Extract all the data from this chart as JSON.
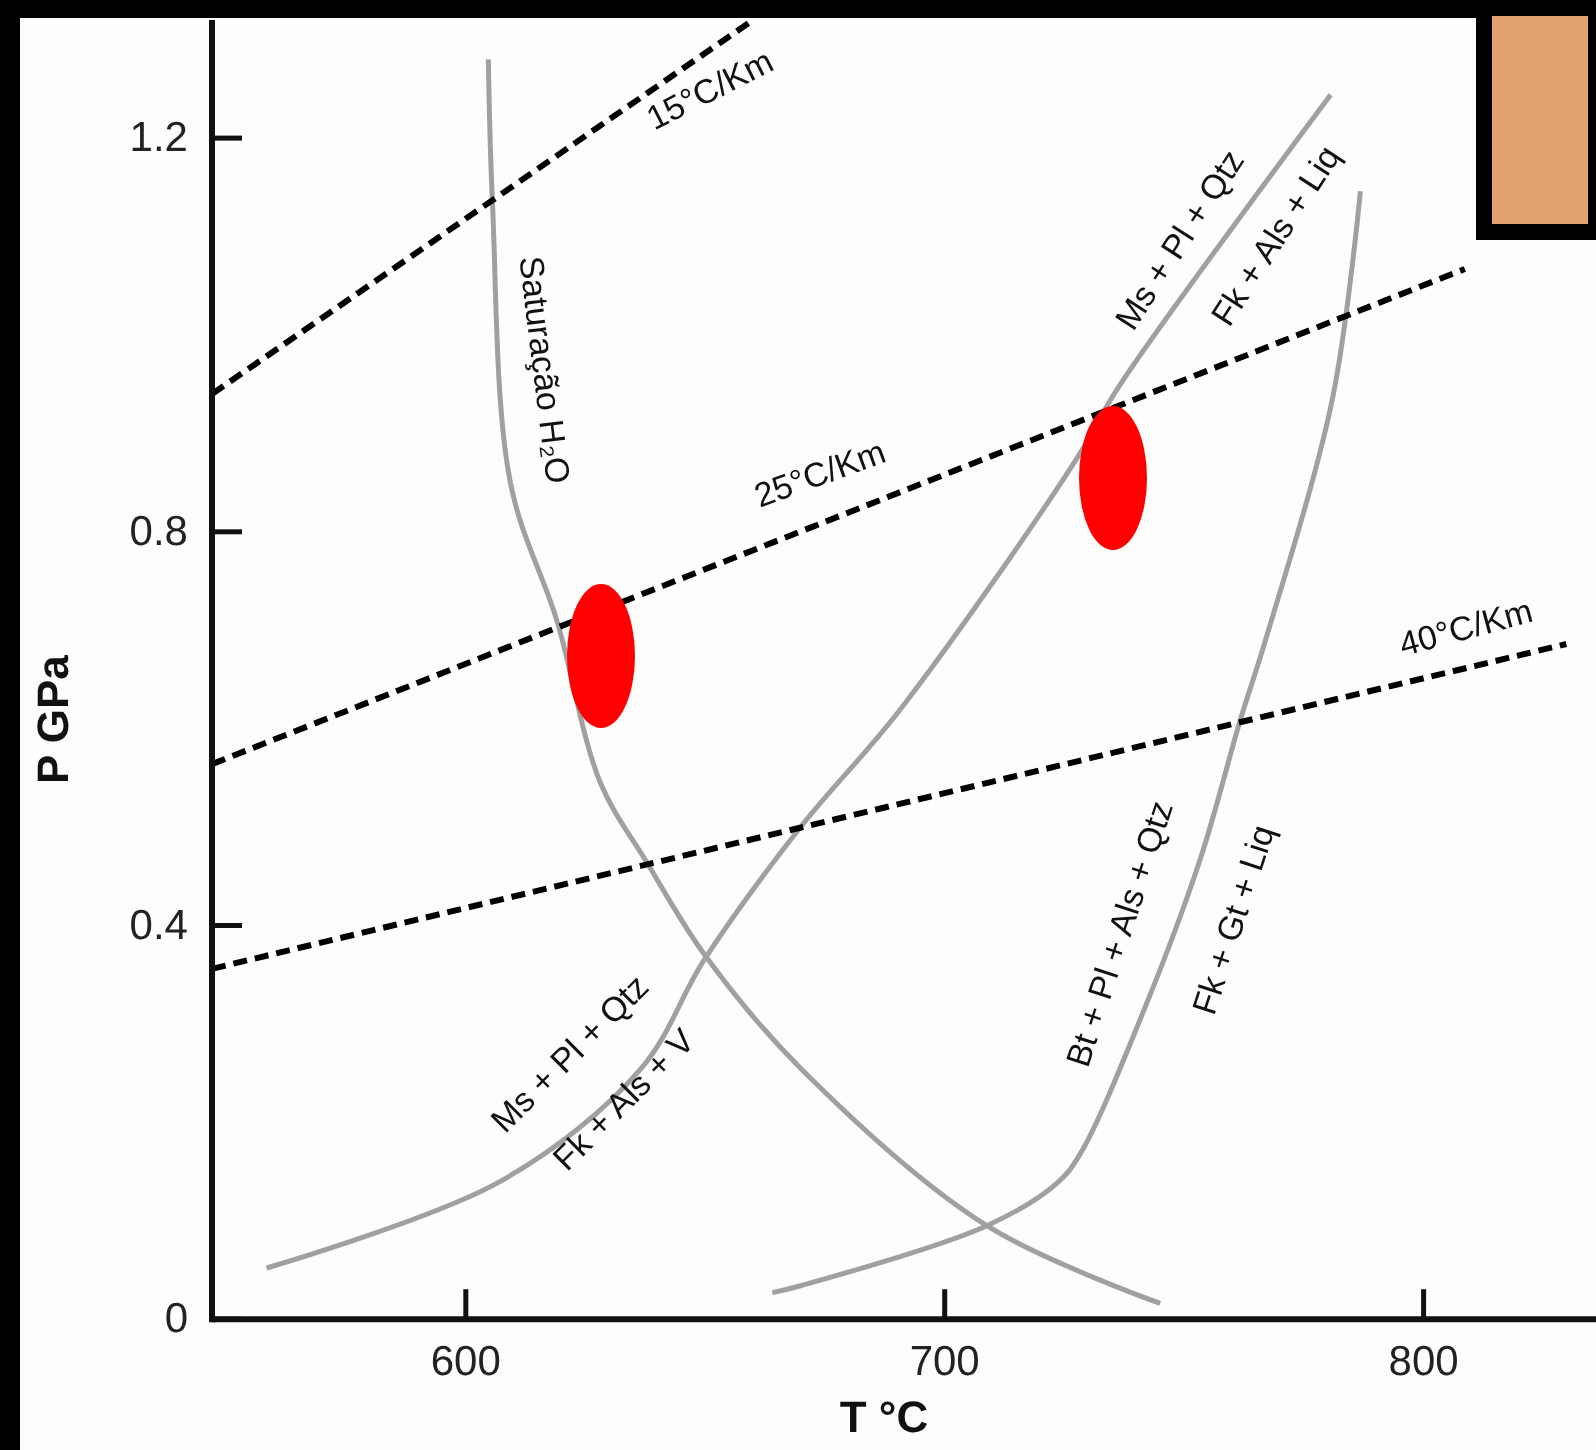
{
  "chart_data": {
    "type": "line",
    "xlabel": "T °C",
    "ylabel": "P GPa",
    "xlim": [
      547,
      836
    ],
    "ylim": [
      0,
      1.32
    ],
    "xticks": [
      600,
      700,
      800
    ],
    "yticks": [
      0,
      0.4,
      0.8,
      1.2
    ],
    "series": [
      {
        "color": "#a0a0a0",
        "line_style": "solid",
        "x": [
          604.7,
          605.6,
          609.3,
          619,
          628.1,
          637.7,
          649.9,
          669.9,
          708.8,
          745
        ],
        "values": [
          1.28,
          1.13,
          0.85,
          0.71,
          0.545,
          0.465,
          0.37,
          0.255,
          0.095,
          0.016
        ]
      },
      {
        "color": "#a0a0a0",
        "line_style": "solid",
        "x": [
          558.4,
          607.2,
          636.5,
          649.9,
          669.9,
          690.8,
          727,
          736.7,
          780.6
        ],
        "values": [
          0.052,
          0.14,
          0.254,
          0.366,
          0.5,
          0.62,
          0.87,
          0.95,
          1.244
        ]
      },
      {
        "color": "#a0a0a0",
        "line_style": "solid",
        "x": [
          664,
          669.9,
          708.8,
          723.4,
          728.3,
          742.1,
          753.4,
          761.8,
          767,
          781,
          786.8
        ],
        "values": [
          0.027,
          0.034,
          0.095,
          0.138,
          0.168,
          0.32,
          0.468,
          0.61,
          0.69,
          0.936,
          1.146
        ]
      },
      {
        "color": "#000000",
        "line_style": "dashed",
        "x": [
          547,
          660
        ],
        "values": [
          0.94,
          1.32
        ]
      },
      {
        "color": "#000000",
        "line_style": "dashed",
        "x": [
          547,
          808.6
        ],
        "values": [
          0.564,
          1.067
        ]
      },
      {
        "color": "#000000",
        "line_style": "dashed",
        "x": [
          547,
          829.8
        ],
        "values": [
          0.356,
          0.686
        ]
      }
    ],
    "annotations": [
      "15°C/Km",
      "Saturação H₂O",
      "25°C/Km",
      "Ms + Pl + Qtz",
      "Fk + Als + Liq",
      "40°C/Km",
      "Ms + Pl + Qtz",
      "Fk + Als + V",
      "Bt + Pl + Als + Qtz",
      "Fk + Gt + Liq"
    ]
  }
}
